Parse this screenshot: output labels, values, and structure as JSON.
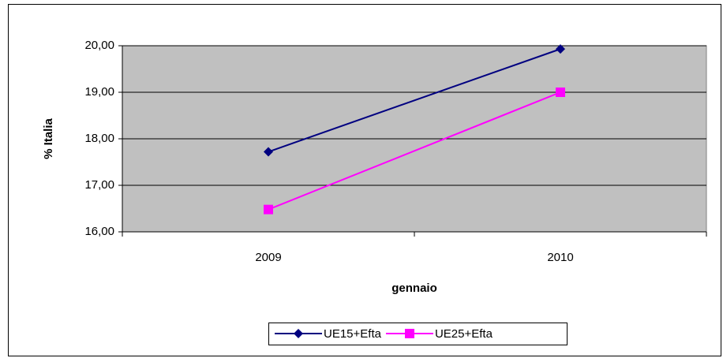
{
  "chart_data": {
    "type": "line",
    "y_label": "% Italia",
    "x_label": "gennaio",
    "categories": [
      "2009",
      "2010"
    ],
    "series": [
      {
        "name": "UE15+Efta",
        "color": "#000080",
        "marker": "diamond",
        "values": [
          17.72,
          19.93
        ]
      },
      {
        "name": "UE25+Efta",
        "color": "#ff00ff",
        "marker": "square",
        "values": [
          16.48,
          19.0
        ]
      }
    ],
    "ylim": [
      16,
      20
    ],
    "yticks": [
      {
        "value": 16,
        "label": "16,00"
      },
      {
        "value": 17,
        "label": "17,00"
      },
      {
        "value": 18,
        "label": "18,00"
      },
      {
        "value": 19,
        "label": "19,00"
      },
      {
        "value": 20,
        "label": "20,00"
      }
    ],
    "grid": true,
    "plot_background": "#c0c0c0",
    "legend": "bottom"
  }
}
